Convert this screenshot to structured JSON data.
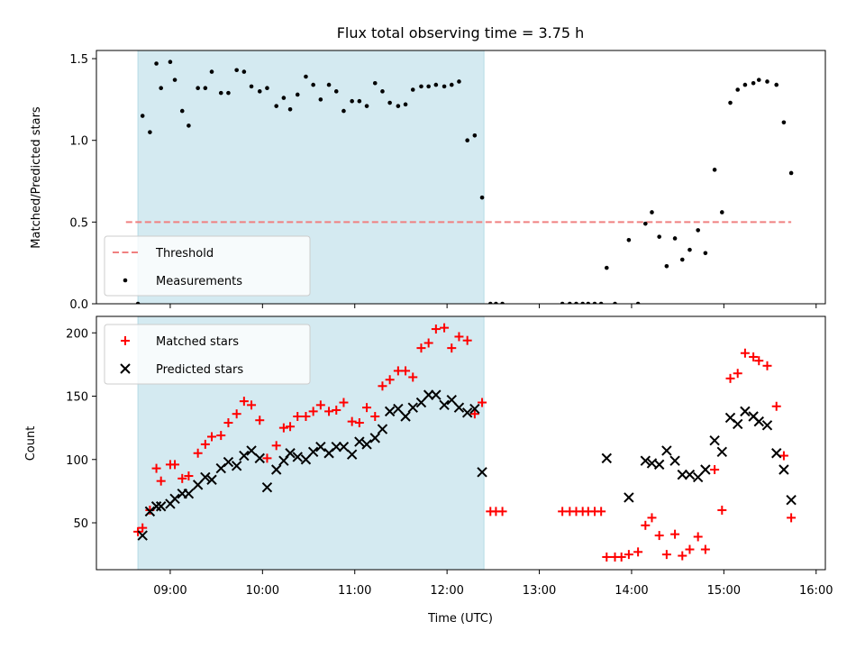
{
  "chart_data": {
    "type": "scatter",
    "title": "Flux total observing time = 3.75 h",
    "xlabel": "Time (UTC)",
    "x_tick_labels": [
      "09:00",
      "10:00",
      "11:00",
      "12:00",
      "13:00",
      "14:00",
      "15:00",
      "16:00"
    ],
    "x_tick_values": [
      9,
      10,
      11,
      12,
      13,
      14,
      15,
      16
    ],
    "xlim": [
      8.2,
      16.1
    ],
    "shaded_region": {
      "x": [
        8.65,
        12.4
      ],
      "color": "#d4eaf1"
    },
    "panels": [
      {
        "name": "ratio",
        "ylabel": "Matched/Predicted stars",
        "ylim": [
          0,
          1.55
        ],
        "y_ticks": [
          0,
          0.5,
          1,
          1.5
        ],
        "y_tick_labels": [
          "0.0",
          "0.5",
          "1.0",
          "1.5"
        ],
        "legend": {
          "location": "lower-left",
          "entries": [
            "Threshold",
            "Measurements"
          ]
        },
        "series": [
          {
            "name": "Threshold",
            "kind": "dashed-line",
            "color": "#f08080",
            "x": [
              8.52,
              15.73
            ],
            "y": [
              0.5,
              0.5
            ]
          },
          {
            "name": "Measurements",
            "kind": "dot",
            "color": "#000000",
            "points": [
              [
                8.65,
                0.0
              ],
              [
                8.7,
                1.15
              ],
              [
                8.78,
                1.05
              ],
              [
                8.85,
                1.47
              ],
              [
                8.9,
                1.32
              ],
              [
                9.0,
                1.48
              ],
              [
                9.05,
                1.37
              ],
              [
                9.13,
                1.18
              ],
              [
                9.2,
                1.09
              ],
              [
                9.3,
                1.32
              ],
              [
                9.38,
                1.32
              ],
              [
                9.45,
                1.42
              ],
              [
                9.55,
                1.29
              ],
              [
                9.63,
                1.29
              ],
              [
                9.72,
                1.43
              ],
              [
                9.8,
                1.42
              ],
              [
                9.88,
                1.33
              ],
              [
                9.97,
                1.3
              ],
              [
                10.05,
                1.32
              ],
              [
                10.15,
                1.21
              ],
              [
                10.23,
                1.26
              ],
              [
                10.3,
                1.19
              ],
              [
                10.38,
                1.28
              ],
              [
                10.47,
                1.39
              ],
              [
                10.55,
                1.34
              ],
              [
                10.63,
                1.25
              ],
              [
                10.72,
                1.34
              ],
              [
                10.8,
                1.3
              ],
              [
                10.88,
                1.18
              ],
              [
                10.97,
                1.24
              ],
              [
                11.05,
                1.24
              ],
              [
                11.13,
                1.21
              ],
              [
                11.22,
                1.35
              ],
              [
                11.3,
                1.3
              ],
              [
                11.38,
                1.23
              ],
              [
                11.47,
                1.21
              ],
              [
                11.55,
                1.22
              ],
              [
                11.63,
                1.31
              ],
              [
                11.72,
                1.33
              ],
              [
                11.8,
                1.33
              ],
              [
                11.88,
                1.34
              ],
              [
                11.97,
                1.33
              ],
              [
                12.05,
                1.34
              ],
              [
                12.13,
                1.36
              ],
              [
                12.22,
                1.0
              ],
              [
                12.3,
                1.03
              ],
              [
                12.38,
                0.65
              ],
              [
                12.47,
                0.0
              ],
              [
                12.53,
                0.0
              ],
              [
                12.6,
                0.0
              ],
              [
                13.25,
                0.0
              ],
              [
                13.33,
                0.0
              ],
              [
                13.4,
                0.0
              ],
              [
                13.47,
                0.0
              ],
              [
                13.53,
                0.0
              ],
              [
                13.6,
                0.0
              ],
              [
                13.67,
                0.0
              ],
              [
                13.73,
                0.22
              ],
              [
                13.82,
                0.0
              ],
              [
                13.97,
                0.39
              ],
              [
                14.07,
                0.0
              ],
              [
                14.15,
                0.49
              ],
              [
                14.22,
                0.56
              ],
              [
                14.3,
                0.41
              ],
              [
                14.38,
                0.23
              ],
              [
                14.47,
                0.4
              ],
              [
                14.55,
                0.27
              ],
              [
                14.63,
                0.33
              ],
              [
                14.72,
                0.45
              ],
              [
                14.8,
                0.31
              ],
              [
                14.9,
                0.82
              ],
              [
                14.98,
                0.56
              ],
              [
                15.07,
                1.23
              ],
              [
                15.15,
                1.31
              ],
              [
                15.23,
                1.34
              ],
              [
                15.32,
                1.35
              ],
              [
                15.38,
                1.37
              ],
              [
                15.47,
                1.36
              ],
              [
                15.57,
                1.34
              ],
              [
                15.65,
                1.11
              ],
              [
                15.73,
                0.8
              ]
            ]
          }
        ]
      },
      {
        "name": "counts",
        "ylabel": "Count",
        "ylim": [
          13,
          213
        ],
        "y_ticks": [
          50,
          100,
          150,
          200
        ],
        "y_tick_labels": [
          "50",
          "100",
          "150",
          "200"
        ],
        "legend": {
          "location": "top-left",
          "entries": [
            "Matched stars",
            "Predicted stars"
          ]
        },
        "series": [
          {
            "name": "Matched stars",
            "kind": "plus",
            "color": "#ff0000",
            "points": [
              [
                8.65,
                43
              ],
              [
                8.7,
                46
              ],
              [
                8.78,
                60
              ],
              [
                8.85,
                93
              ],
              [
                8.9,
                83
              ],
              [
                9.0,
                96
              ],
              [
                9.05,
                96
              ],
              [
                9.13,
                85
              ],
              [
                9.2,
                87
              ],
              [
                9.3,
                105
              ],
              [
                9.38,
                112
              ],
              [
                9.45,
                118
              ],
              [
                9.55,
                119
              ],
              [
                9.63,
                129
              ],
              [
                9.72,
                136
              ],
              [
                9.8,
                146
              ],
              [
                9.88,
                143
              ],
              [
                9.97,
                131
              ],
              [
                10.05,
                101
              ],
              [
                10.15,
                111
              ],
              [
                10.23,
                125
              ],
              [
                10.3,
                126
              ],
              [
                10.38,
                134
              ],
              [
                10.47,
                134
              ],
              [
                10.55,
                138
              ],
              [
                10.63,
                143
              ],
              [
                10.72,
                138
              ],
              [
                10.8,
                139
              ],
              [
                10.88,
                145
              ],
              [
                10.97,
                130
              ],
              [
                11.05,
                129
              ],
              [
                11.13,
                141
              ],
              [
                11.22,
                134
              ],
              [
                11.3,
                158
              ],
              [
                11.38,
                163
              ],
              [
                11.47,
                170
              ],
              [
                11.55,
                170
              ],
              [
                11.63,
                165
              ],
              [
                11.72,
                188
              ],
              [
                11.8,
                192
              ],
              [
                11.88,
                203
              ],
              [
                11.97,
                204
              ],
              [
                12.05,
                188
              ],
              [
                12.13,
                197
              ],
              [
                12.22,
                194
              ],
              [
                12.3,
                136
              ],
              [
                12.38,
                145
              ],
              [
                12.47,
                59
              ],
              [
                12.53,
                59
              ],
              [
                12.6,
                59
              ],
              [
                13.25,
                59
              ],
              [
                13.33,
                59
              ],
              [
                13.4,
                59
              ],
              [
                13.47,
                59
              ],
              [
                13.53,
                59
              ],
              [
                13.6,
                59
              ],
              [
                13.67,
                59
              ],
              [
                13.73,
                23
              ],
              [
                13.82,
                23
              ],
              [
                13.89,
                23
              ],
              [
                13.97,
                25
              ],
              [
                14.07,
                27
              ],
              [
                14.15,
                48
              ],
              [
                14.22,
                54
              ],
              [
                14.3,
                40
              ],
              [
                14.38,
                25
              ],
              [
                14.47,
                41
              ],
              [
                14.55,
                24
              ],
              [
                14.63,
                29
              ],
              [
                14.72,
                39
              ],
              [
                14.8,
                29
              ],
              [
                14.9,
                92
              ],
              [
                14.98,
                60
              ],
              [
                15.07,
                164
              ],
              [
                15.15,
                168
              ],
              [
                15.23,
                184
              ],
              [
                15.32,
                181
              ],
              [
                15.38,
                178
              ],
              [
                15.47,
                174
              ],
              [
                15.57,
                142
              ],
              [
                15.65,
                103
              ],
              [
                15.73,
                54
              ]
            ]
          },
          {
            "name": "Predicted stars",
            "kind": "x",
            "color": "#000000",
            "points": [
              [
                8.7,
                40
              ],
              [
                8.78,
                59
              ],
              [
                8.85,
                63
              ],
              [
                8.9,
                63
              ],
              [
                9.0,
                65
              ],
              [
                9.05,
                69
              ],
              [
                9.13,
                73
              ],
              [
                9.2,
                73
              ],
              [
                9.3,
                80
              ],
              [
                9.38,
                86
              ],
              [
                9.45,
                84
              ],
              [
                9.55,
                93
              ],
              [
                9.63,
                98
              ],
              [
                9.72,
                95
              ],
              [
                9.8,
                103
              ],
              [
                9.88,
                107
              ],
              [
                9.97,
                101
              ],
              [
                10.05,
                78
              ],
              [
                10.15,
                92
              ],
              [
                10.23,
                99
              ],
              [
                10.3,
                105
              ],
              [
                10.38,
                102
              ],
              [
                10.47,
                100
              ],
              [
                10.55,
                106
              ],
              [
                10.63,
                110
              ],
              [
                10.72,
                105
              ],
              [
                10.8,
                110
              ],
              [
                10.88,
                110
              ],
              [
                10.97,
                104
              ],
              [
                11.05,
                114
              ],
              [
                11.13,
                112
              ],
              [
                11.22,
                117
              ],
              [
                11.3,
                124
              ],
              [
                11.38,
                138
              ],
              [
                11.47,
                140
              ],
              [
                11.55,
                134
              ],
              [
                11.63,
                141
              ],
              [
                11.72,
                145
              ],
              [
                11.8,
                151
              ],
              [
                11.88,
                151
              ],
              [
                11.97,
                143
              ],
              [
                12.05,
                147
              ],
              [
                12.13,
                141
              ],
              [
                12.22,
                137
              ],
              [
                12.3,
                140
              ],
              [
                12.38,
                90
              ],
              [
                13.73,
                101
              ],
              [
                13.97,
                70
              ],
              [
                14.15,
                99
              ],
              [
                14.22,
                97
              ],
              [
                14.3,
                96
              ],
              [
                14.38,
                107
              ],
              [
                14.47,
                99
              ],
              [
                14.55,
                88
              ],
              [
                14.63,
                88
              ],
              [
                14.72,
                86
              ],
              [
                14.8,
                92
              ],
              [
                14.9,
                115
              ],
              [
                14.98,
                106
              ],
              [
                15.07,
                133
              ],
              [
                15.15,
                128
              ],
              [
                15.23,
                138
              ],
              [
                15.32,
                134
              ],
              [
                15.38,
                130
              ],
              [
                15.47,
                127
              ],
              [
                15.57,
                105
              ],
              [
                15.65,
                92
              ],
              [
                15.73,
                68
              ]
            ]
          }
        ]
      }
    ]
  }
}
